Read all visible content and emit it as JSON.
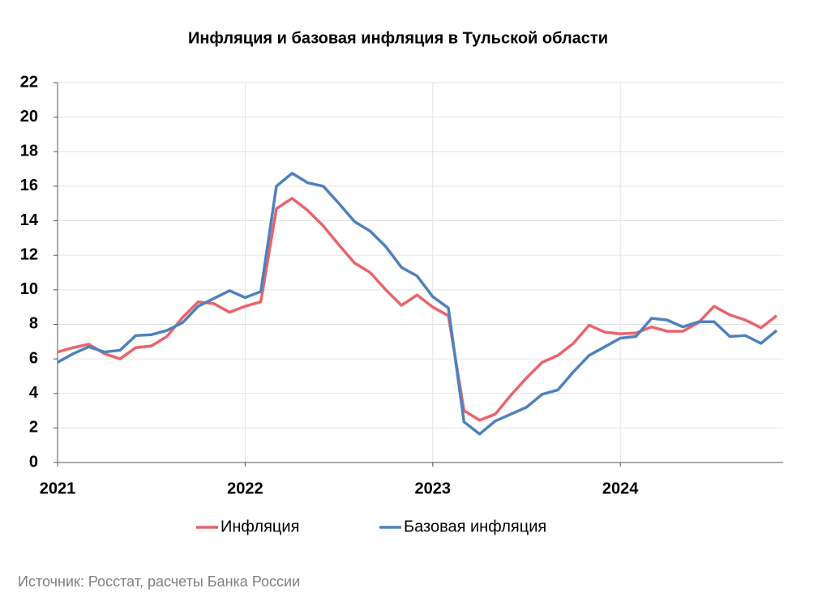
{
  "chart_data": {
    "type": "line",
    "title": "Инфляция и базовая инфляция в Тульской области",
    "source": "Источник: Росстат, расчеты Банка России",
    "categories": [
      "2021",
      null,
      null,
      null,
      null,
      null,
      null,
      null,
      null,
      null,
      null,
      null,
      "2022",
      null,
      null,
      null,
      null,
      null,
      null,
      null,
      null,
      null,
      null,
      null,
      "2023",
      null,
      null,
      null,
      null,
      null,
      null,
      null,
      null,
      null,
      null,
      null,
      "2024",
      null,
      null,
      null,
      null,
      null,
      null,
      null,
      null,
      null,
      null
    ],
    "series": [
      {
        "name": "Инфляция",
        "color": "#e8646b",
        "values": [
          6.4,
          6.65,
          6.85,
          6.3,
          6.0,
          6.65,
          6.75,
          7.3,
          8.4,
          9.3,
          9.2,
          8.7,
          9.05,
          9.3,
          14.7,
          15.3,
          14.6,
          13.7,
          12.6,
          11.55,
          11.0,
          10.0,
          9.1,
          9.7,
          9.0,
          8.5,
          3.0,
          2.45,
          2.8,
          3.9,
          4.9,
          5.8,
          6.2,
          6.9,
          7.95,
          7.55,
          7.45,
          7.5,
          7.85,
          7.6,
          7.6,
          8.1,
          9.05,
          8.55,
          8.25,
          7.8,
          8.5
        ]
      },
      {
        "name": "Базовая инфляция",
        "color": "#4f81bd",
        "values": [
          5.8,
          6.3,
          6.7,
          6.4,
          6.5,
          7.35,
          7.4,
          7.65,
          8.1,
          9.05,
          9.5,
          9.95,
          9.55,
          9.9,
          16.0,
          16.75,
          16.2,
          16.0,
          15.0,
          13.95,
          13.4,
          12.5,
          11.3,
          10.8,
          9.6,
          8.95,
          2.35,
          1.65,
          2.4,
          2.8,
          3.2,
          3.95,
          4.2,
          5.25,
          6.2,
          6.7,
          7.2,
          7.3,
          8.35,
          8.25,
          7.85,
          8.15,
          8.15,
          7.3,
          7.35,
          6.9,
          7.65
        ]
      }
    ],
    "ylim": [
      0,
      22
    ],
    "yticks": [
      0,
      2,
      4,
      6,
      8,
      10,
      12,
      14,
      16,
      18,
      20,
      22
    ],
    "grid": true
  }
}
